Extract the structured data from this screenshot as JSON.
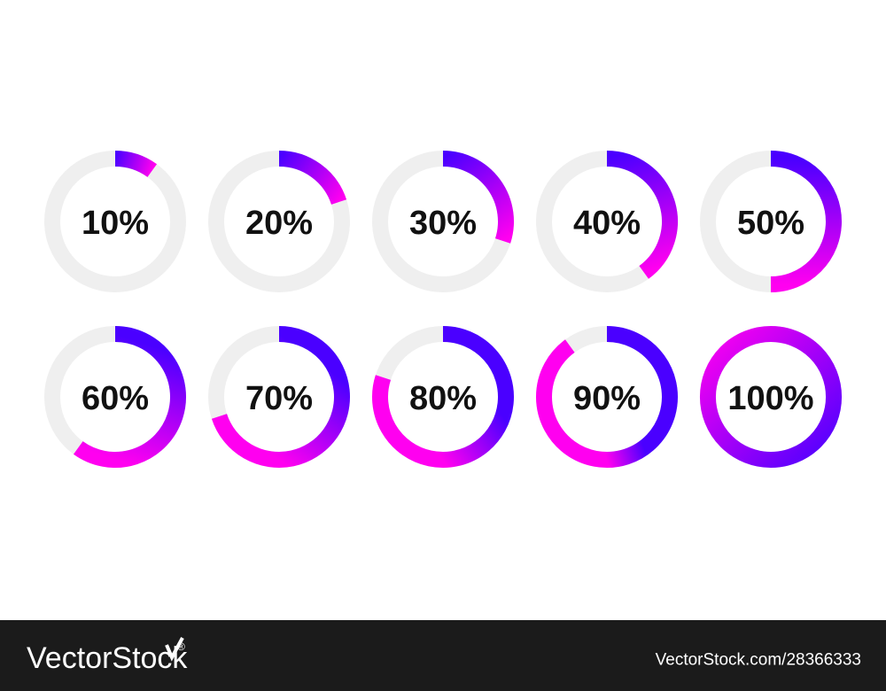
{
  "rings": [
    {
      "label": "10%",
      "value": 10
    },
    {
      "label": "20%",
      "value": 20
    },
    {
      "label": "30%",
      "value": 30
    },
    {
      "label": "40%",
      "value": 40
    },
    {
      "label": "50%",
      "value": 50
    },
    {
      "label": "60%",
      "value": 60
    },
    {
      "label": "70%",
      "value": 70
    },
    {
      "label": "80%",
      "value": 80
    },
    {
      "label": "90%",
      "value": 90
    },
    {
      "label": "100%",
      "value": 100
    }
  ],
  "footer": {
    "brand": "VectorStock",
    "mark": "®",
    "url": "VectorStock.com/28366333"
  }
}
